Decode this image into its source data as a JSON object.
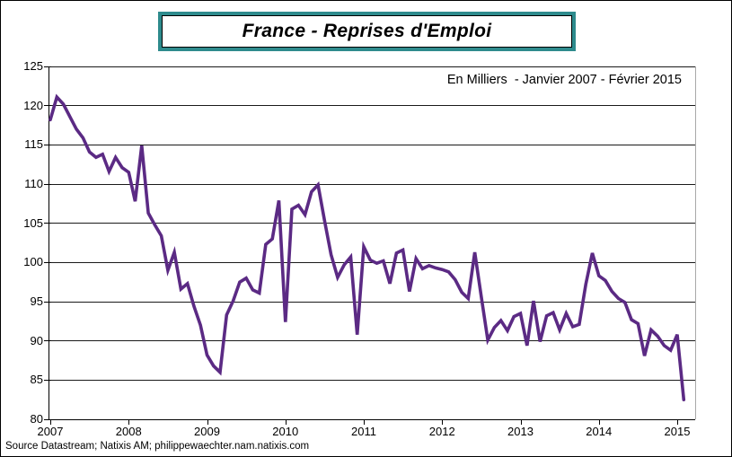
{
  "header": {
    "title": "France - Reprises d'Emploi"
  },
  "chart_data": {
    "type": "line",
    "title": "France - Reprises d'Emploi",
    "subtitle": "En Milliers  - Janvier 2007 - Février 2015",
    "source_note": "Source Datastream; Natixis AM; philippewaechter.nam.natixis.com",
    "unit": "milliers",
    "frequency": "monthly",
    "x_start": "Janvier 2007",
    "x_end": "Février 2015",
    "x_tick_labels": [
      "2007",
      "2008",
      "2009",
      "2010",
      "2011",
      "2012",
      "2013",
      "2014",
      "2015"
    ],
    "y_ticks": [
      125,
      120,
      115,
      110,
      105,
      100,
      95,
      90,
      85,
      80
    ],
    "ylim": [
      80,
      125
    ],
    "grid": "horizontal",
    "legend": "none",
    "line_color": "#5b2a84",
    "series": [
      {
        "name": "Reprises d'emploi",
        "values": [
          118.2,
          121.1,
          120.2,
          118.6,
          117.0,
          115.9,
          114.1,
          113.4,
          113.8,
          111.6,
          113.4,
          112.1,
          111.5,
          107.8,
          114.9,
          106.3,
          104.8,
          103.4,
          99.0,
          101.3,
          96.6,
          97.3,
          94.4,
          92.0,
          88.2,
          86.8,
          86.0,
          93.3,
          95.1,
          97.5,
          98.0,
          96.5,
          96.1,
          102.3,
          103.0,
          107.9,
          92.4,
          106.8,
          107.3,
          106.1,
          109.0,
          109.9,
          105.3,
          101.0,
          98.1,
          99.7,
          100.7,
          90.8,
          102.0,
          100.3,
          99.9,
          100.2,
          97.3,
          101.2,
          101.6,
          96.3,
          100.5,
          99.2,
          99.6,
          99.3,
          99.1,
          98.8,
          97.8,
          96.2,
          95.4,
          101.3,
          95.6,
          90.1,
          91.7,
          92.6,
          91.3,
          93.1,
          93.5,
          89.4,
          95.1,
          89.9,
          93.2,
          93.6,
          91.4,
          93.5,
          91.8,
          92.1,
          97.2,
          101.2,
          98.3,
          97.7,
          96.3,
          95.4,
          94.9,
          92.7,
          92.2,
          88.1,
          91.4,
          90.6,
          89.4,
          88.8,
          90.8,
          82.5
        ]
      }
    ]
  }
}
